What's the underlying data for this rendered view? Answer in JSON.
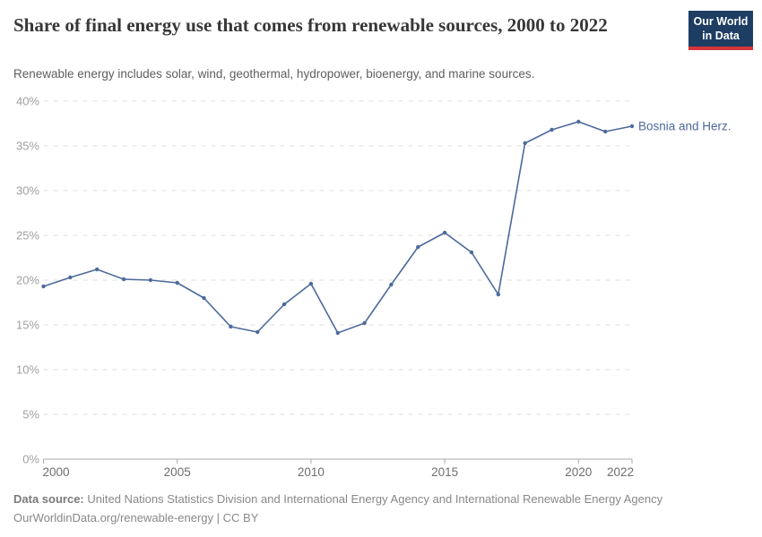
{
  "header": {
    "title": "Share of final energy use that comes from renewable sources, 2000 to 2022",
    "subtitle": "Renewable energy includes solar, wind, geothermal, hydropower, bioenergy, and marine sources.",
    "logo": {
      "line1": "Our World",
      "line2": "in Data",
      "bg_color": "#1d3d63",
      "accent_color": "#d4353a"
    }
  },
  "chart_data": {
    "type": "line",
    "title": "Share of final energy use that comes from renewable sources, 2000 to 2022",
    "xlabel": "",
    "ylabel": "",
    "xlim": [
      2000,
      2022
    ],
    "ylim": [
      0,
      40
    ],
    "grid": "horizontal-dashed",
    "legend_position": "end-of-line-label",
    "xticks": [
      2000,
      2005,
      2010,
      2015,
      2020,
      2022
    ],
    "yticks": [
      0,
      5,
      10,
      15,
      20,
      25,
      30,
      35,
      40
    ],
    "ytick_suffix": "%",
    "series": [
      {
        "name": "Bosnia and Herz.",
        "color": "#4C6A9C",
        "x": [
          2000,
          2001,
          2002,
          2003,
          2004,
          2005,
          2006,
          2007,
          2008,
          2009,
          2010,
          2011,
          2012,
          2013,
          2014,
          2015,
          2016,
          2017,
          2018,
          2019,
          2020,
          2021,
          2022
        ],
        "values": [
          19.3,
          20.3,
          21.2,
          20.1,
          20.0,
          19.7,
          18.0,
          14.8,
          14.2,
          17.3,
          19.6,
          14.1,
          15.2,
          19.5,
          23.7,
          25.3,
          23.1,
          18.4,
          35.3,
          36.8,
          37.7,
          36.6,
          37.2
        ]
      }
    ]
  },
  "footer": {
    "datasource_label": "Data source:",
    "datasource_text": " United Nations Statistics Division and International Energy Agency and International Renewable Energy Agency",
    "license_line": "OurWorldinData.org/renewable-energy | CC BY"
  }
}
